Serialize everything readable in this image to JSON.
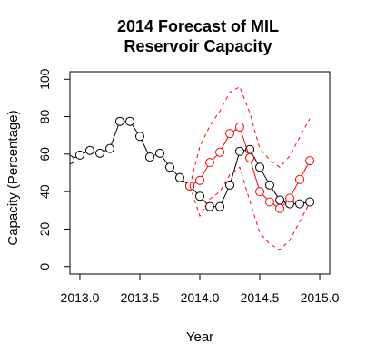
{
  "chart_data": {
    "type": "line",
    "title_line1": "2014 Forecast of MIL",
    "title_line2": "Reservoir Capacity",
    "xlabel": "Year",
    "ylabel": "Capacity (Percentage)",
    "xlim": [
      2012.917,
      2015.083
    ],
    "ylim": [
      -4,
      104
    ],
    "x_ticks": [
      2013.0,
      2013.5,
      2014.0,
      2014.5,
      2015.0
    ],
    "x_tick_labels": [
      "2013.0",
      "2013.5",
      "2014.0",
      "2014.5",
      "2015.0"
    ],
    "y_ticks": [
      0,
      20,
      40,
      60,
      80,
      100
    ],
    "y_tick_labels": [
      "0",
      "20",
      "40",
      "60",
      "80",
      "100"
    ],
    "grid": false,
    "legend": "none",
    "colors": {
      "observed": "#000000",
      "forecast": "#ff0000",
      "interval": "#ff0000"
    },
    "series": [
      {
        "role": "observed",
        "style": "line-points",
        "x": [
          2012.917,
          2013.0,
          2013.083,
          2013.167,
          2013.25,
          2013.333,
          2013.417,
          2013.5,
          2013.583,
          2013.667,
          2013.75,
          2013.833,
          2013.917,
          2014.0,
          2014.083,
          2014.167,
          2014.25,
          2014.333,
          2014.417,
          2014.5,
          2014.583,
          2014.667,
          2014.75,
          2014.833,
          2014.917
        ],
        "y": [
          57,
          59.5,
          62,
          60.5,
          63,
          77.5,
          77.5,
          69.5,
          58.5,
          60.5,
          53,
          47.5,
          43,
          37.5,
          32,
          32,
          43.5,
          61.5,
          62.5,
          53,
          43.5,
          35.5,
          33.5,
          33.5,
          34.5
        ]
      },
      {
        "role": "forecast",
        "style": "line-points",
        "x": [
          2013.917,
          2014.0,
          2014.083,
          2014.167,
          2014.25,
          2014.333,
          2014.417,
          2014.5,
          2014.583,
          2014.667,
          2014.75,
          2014.833,
          2014.917
        ],
        "y": [
          43,
          46,
          55.5,
          61,
          71,
          74.5,
          58,
          40,
          34.5,
          31,
          36.5,
          46.5,
          56.5
        ]
      },
      {
        "role": "upper-interval",
        "style": "dashed",
        "x": [
          2013.917,
          2014.0,
          2014.083,
          2014.167,
          2014.25,
          2014.333,
          2014.417,
          2014.5,
          2014.583,
          2014.667,
          2014.75,
          2014.833,
          2014.917
        ],
        "y": [
          43,
          64,
          75,
          83,
          93,
          96,
          82,
          63,
          57,
          53,
          59,
          69,
          79
        ]
      },
      {
        "role": "lower-interval",
        "style": "dashed",
        "x": [
          2013.917,
          2014.0,
          2014.083,
          2014.167,
          2014.25,
          2014.333,
          2014.417,
          2014.5,
          2014.583,
          2014.667,
          2014.75,
          2014.833,
          2014.917
        ],
        "y": [
          43,
          27,
          36,
          40,
          49,
          53,
          35,
          18,
          12,
          9,
          14,
          24,
          34
        ]
      }
    ]
  }
}
